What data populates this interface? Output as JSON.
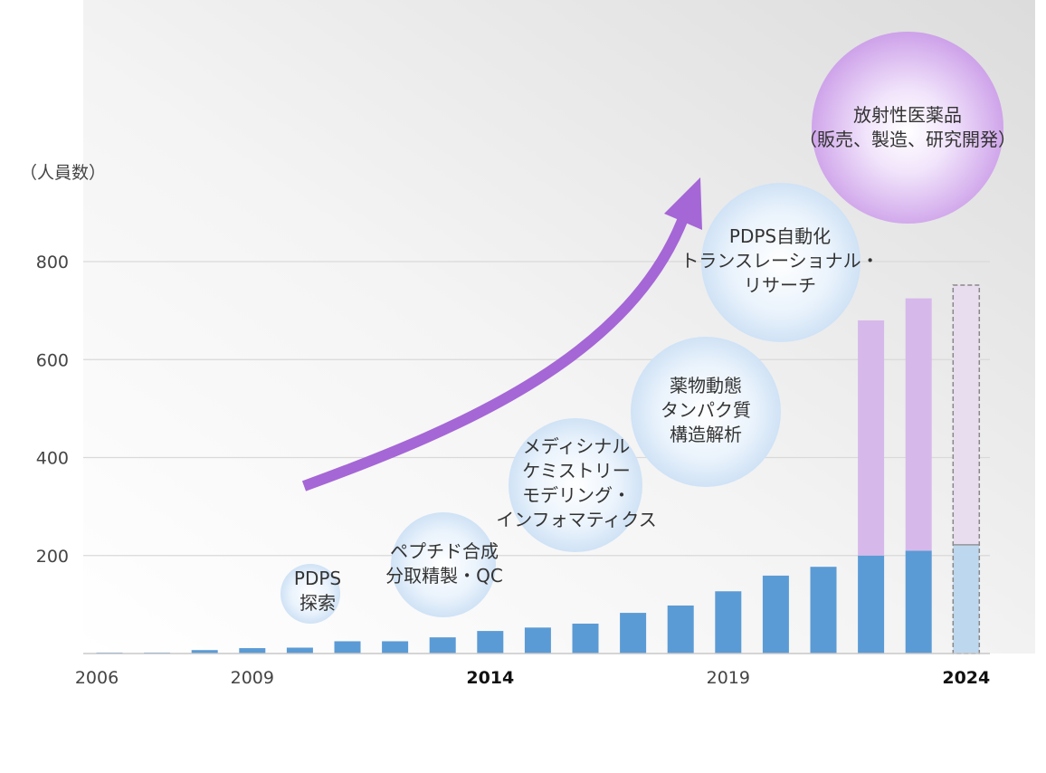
{
  "y_unit_label": "（人員数）",
  "colors": {
    "bar_blue": "#5b9bd5",
    "bar_purple": "#d6b8ea",
    "forecast_blue": "#bdd7ee",
    "forecast_purple": "#e8dcef",
    "arrow": "#a566d6",
    "grid": "#d9d9d9"
  },
  "chart_data": {
    "type": "bar",
    "stacked": true,
    "x": [
      2006,
      2007,
      2008,
      2009,
      2010,
      2011,
      2012,
      2013,
      2014,
      2015,
      2016,
      2017,
      2018,
      2019,
      2020,
      2021,
      2022,
      2023,
      2024
    ],
    "x_tick_labels": [
      {
        "year": 2006,
        "label": "2006",
        "bold": false
      },
      {
        "year": 2009,
        "label": "2009",
        "bold": false
      },
      {
        "year": 2014,
        "label": "2014",
        "bold": true
      },
      {
        "year": 2019,
        "label": "2019",
        "bold": false
      },
      {
        "year": 2024,
        "label": "2024",
        "bold": true
      }
    ],
    "series": [
      {
        "values": [
          2,
          2,
          7,
          11,
          12,
          25,
          25,
          33,
          46,
          53,
          61,
          83,
          98,
          127,
          159,
          177,
          200,
          210,
          222
        ]
      },
      {
        "values": [
          0,
          0,
          0,
          0,
          0,
          0,
          0,
          0,
          0,
          0,
          0,
          0,
          0,
          0,
          0,
          0,
          480,
          515,
          530
        ]
      }
    ],
    "forecast_year": 2024,
    "y_ticks": [
      200,
      400,
      600,
      800
    ],
    "ylim": [
      0,
      950
    ],
    "grid": true
  },
  "bubbles": [
    {
      "lines": [
        "PDPS",
        "探索"
      ]
    },
    {
      "lines": [
        "ペプチド合成",
        "分取精製・QC"
      ]
    },
    {
      "lines": [
        "メディシナル",
        "ケミストリー",
        "モデリング・",
        "インフォマティクス"
      ]
    },
    {
      "lines": [
        "薬物動態",
        "タンパク質",
        "構造解析"
      ]
    },
    {
      "lines": [
        "PDPS自動化",
        "トランスレーショナル・",
        "リサーチ"
      ]
    },
    {
      "lines": [
        "放射性医薬品",
        "（販売、製造、研究開発）"
      ]
    }
  ]
}
